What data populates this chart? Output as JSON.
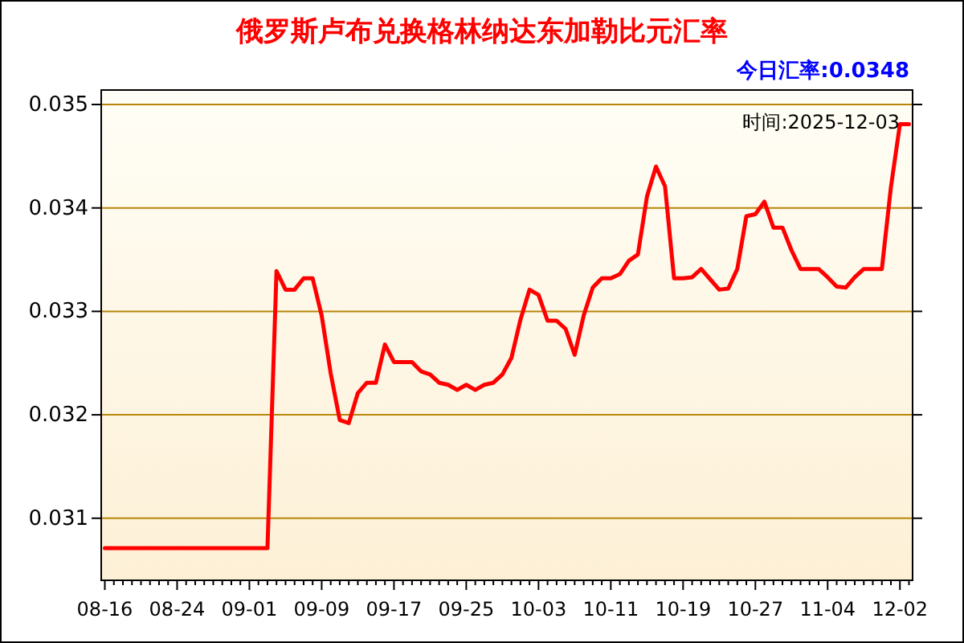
{
  "chart_data": {
    "type": "line",
    "title": "俄罗斯卢布兑换格林纳达东加勒比元汇率",
    "annotations": [
      "今日汇率:0.0348",
      "时间:2025-12-03"
    ],
    "categories": [
      "08-16",
      null,
      null,
      null,
      null,
      null,
      null,
      null,
      "08-24",
      null,
      null,
      null,
      null,
      null,
      null,
      null,
      "09-01",
      null,
      null,
      null,
      null,
      null,
      null,
      null,
      "09-09",
      null,
      null,
      null,
      null,
      null,
      null,
      null,
      "09-17",
      null,
      null,
      null,
      null,
      null,
      null,
      null,
      "09-25",
      null,
      null,
      null,
      null,
      null,
      null,
      null,
      "10-03",
      null,
      null,
      null,
      null,
      null,
      null,
      null,
      "10-11",
      null,
      null,
      null,
      null,
      null,
      null,
      null,
      "10-19",
      null,
      null,
      null,
      null,
      null,
      null,
      null,
      "10-27",
      null,
      null,
      null,
      null,
      null,
      null,
      null,
      "11-04",
      null,
      null,
      null,
      null,
      null,
      null,
      null,
      "12-02",
      null
    ],
    "series": [
      {
        "color": "#ff0000",
        "values": [
          0.03071,
          0.03071,
          0.03071,
          0.03071,
          0.03071,
          0.03071,
          0.03071,
          0.03071,
          0.03071,
          0.03071,
          0.03071,
          0.03071,
          0.03071,
          0.03071,
          0.03071,
          0.03071,
          0.03071,
          0.03071,
          0.03071,
          0.03339,
          0.03321,
          0.03321,
          0.03332,
          0.03332,
          0.03296,
          0.0324,
          0.03195,
          0.03192,
          0.03221,
          0.03231,
          0.03231,
          0.03268,
          0.03251,
          0.03251,
          0.03251,
          0.03242,
          0.03239,
          0.03231,
          0.03229,
          0.03224,
          0.03229,
          0.03224,
          0.03229,
          0.03231,
          0.03239,
          0.03255,
          0.03292,
          0.03321,
          0.03316,
          0.03291,
          0.03291,
          0.03283,
          0.03258,
          0.03296,
          0.03323,
          0.03332,
          0.03332,
          0.03336,
          0.03349,
          0.03355,
          0.03411,
          0.0344,
          0.03421,
          0.03332,
          0.03332,
          0.03333,
          0.03341,
          0.03331,
          0.03321,
          0.03322,
          0.03341,
          0.03392,
          0.03394,
          0.03406,
          0.03381,
          0.03381,
          0.03359,
          0.03341,
          0.03341,
          0.03341,
          0.03333,
          0.03324,
          0.03323,
          0.03333,
          0.03341,
          0.03341,
          0.03341,
          0.0342,
          0.03481,
          0.03481
        ]
      }
    ],
    "ylim": [
      0.0304,
      0.03514
    ],
    "yticks": [
      0.031,
      0.032,
      0.033,
      0.034,
      0.035
    ],
    "grid": "y"
  }
}
